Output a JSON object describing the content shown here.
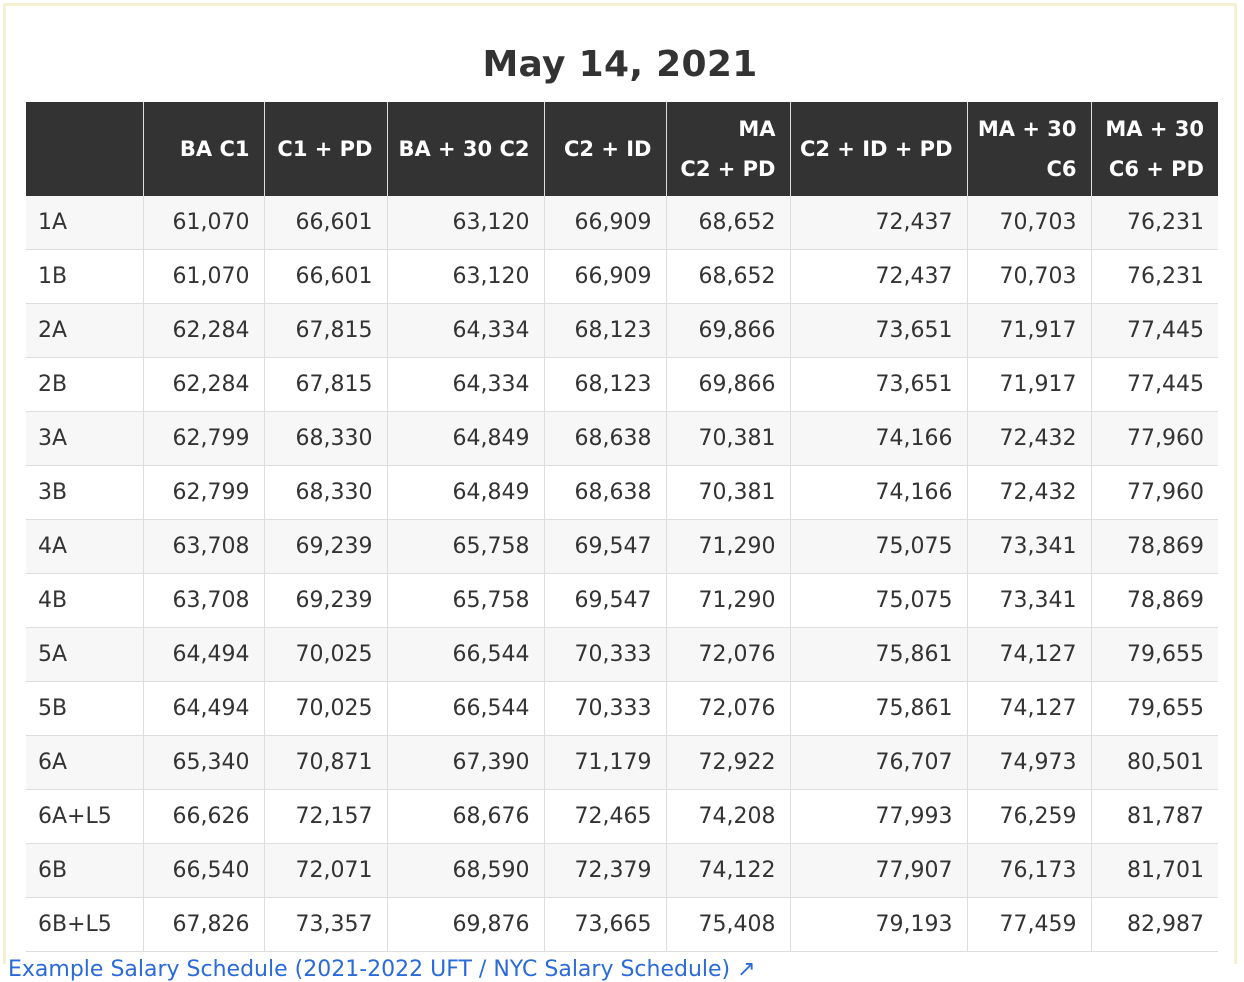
{
  "title": "May 14, 2021",
  "table": {
    "headers": [
      {
        "line1": "",
        "line2": ""
      },
      {
        "line1": "",
        "line2": "BA C1"
      },
      {
        "line1": "",
        "line2": "C1 + PD"
      },
      {
        "line1": "",
        "line2": "BA + 30 C2"
      },
      {
        "line1": "",
        "line2": "C2 + ID"
      },
      {
        "line1": "MA",
        "line2": "C2 + PD"
      },
      {
        "line1": "",
        "line2": "C2 + ID + PD"
      },
      {
        "line1": "MA + 30",
        "line2": "C6"
      },
      {
        "line1": "MA + 30",
        "line2": "C6 + PD"
      }
    ],
    "rows": [
      [
        "1A",
        "61,070",
        "66,601",
        "63,120",
        "66,909",
        "68,652",
        "72,437",
        "70,703",
        "76,231"
      ],
      [
        "1B",
        "61,070",
        "66,601",
        "63,120",
        "66,909",
        "68,652",
        "72,437",
        "70,703",
        "76,231"
      ],
      [
        "2A",
        "62,284",
        "67,815",
        "64,334",
        "68,123",
        "69,866",
        "73,651",
        "71,917",
        "77,445"
      ],
      [
        "2B",
        "62,284",
        "67,815",
        "64,334",
        "68,123",
        "69,866",
        "73,651",
        "71,917",
        "77,445"
      ],
      [
        "3A",
        "62,799",
        "68,330",
        "64,849",
        "68,638",
        "70,381",
        "74,166",
        "72,432",
        "77,960"
      ],
      [
        "3B",
        "62,799",
        "68,330",
        "64,849",
        "68,638",
        "70,381",
        "74,166",
        "72,432",
        "77,960"
      ],
      [
        "4A",
        "63,708",
        "69,239",
        "65,758",
        "69,547",
        "71,290",
        "75,075",
        "73,341",
        "78,869"
      ],
      [
        "4B",
        "63,708",
        "69,239",
        "65,758",
        "69,547",
        "71,290",
        "75,075",
        "73,341",
        "78,869"
      ],
      [
        "5A",
        "64,494",
        "70,025",
        "66,544",
        "70,333",
        "72,076",
        "75,861",
        "74,127",
        "79,655"
      ],
      [
        "5B",
        "64,494",
        "70,025",
        "66,544",
        "70,333",
        "72,076",
        "75,861",
        "74,127",
        "79,655"
      ],
      [
        "6A",
        "65,340",
        "70,871",
        "67,390",
        "71,179",
        "72,922",
        "76,707",
        "74,973",
        "80,501"
      ],
      [
        "6A+L5",
        "66,626",
        "72,157",
        "68,676",
        "72,465",
        "74,208",
        "77,993",
        "76,259",
        "81,787"
      ],
      [
        "6B",
        "66,540",
        "72,071",
        "68,590",
        "72,379",
        "74,122",
        "77,907",
        "76,173",
        "81,701"
      ],
      [
        "6B+L5",
        "67,826",
        "73,357",
        "69,876",
        "73,665",
        "75,408",
        "79,193",
        "77,459",
        "82,987"
      ]
    ]
  },
  "footer_link": {
    "text": "Example Salary Schedule (2021-2022 UFT / NYC Salary Schedule) ↗"
  },
  "colors": {
    "header_bg": "#333333",
    "header_text": "#ffffff",
    "stripe": "#f7f7f7",
    "border": "#dddddd",
    "frame": "#f7efd2",
    "link": "#2a6ad9"
  }
}
